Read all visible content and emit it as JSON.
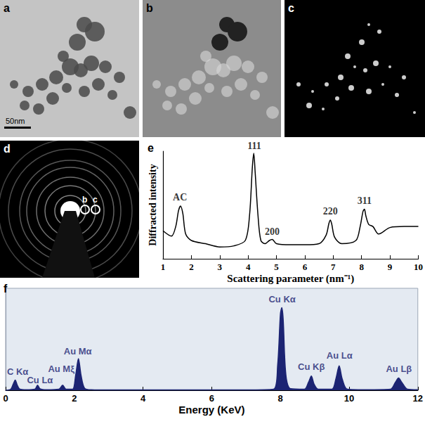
{
  "images": [
    {
      "label": "a",
      "scale_bar": "50nm"
    },
    {
      "label": "b"
    },
    {
      "label": "c"
    },
    {
      "label": "d",
      "aperture_labels": [
        "b",
        "c"
      ]
    }
  ],
  "chart_data": [
    {
      "panel": "e",
      "type": "line",
      "x_label": "Scattering parameter (nm⁻¹)",
      "y_label": "Diffracted intensity",
      "x": [
        1,
        1.3,
        1.45,
        1.55,
        1.62,
        1.7,
        1.8,
        2,
        2.5,
        3,
        3.5,
        3.9,
        4.05,
        4.15,
        4.2,
        4.25,
        4.35,
        4.45,
        4.6,
        4.75,
        4.85,
        5,
        5.5,
        6,
        6.5,
        6.75,
        6.85,
        6.9,
        6.95,
        7.05,
        7.3,
        7.8,
        7.95,
        8.05,
        8.1,
        8.15,
        8.25,
        8.4,
        8.6,
        9,
        9.5,
        10
      ],
      "values": [
        26,
        21,
        30,
        45,
        49,
        42,
        23,
        17,
        14,
        11,
        12,
        17,
        40,
        85,
        98,
        80,
        40,
        17,
        14,
        17,
        18,
        14,
        13,
        13,
        14,
        22,
        33,
        36,
        32,
        20,
        14,
        17,
        30,
        44,
        46,
        40,
        32,
        30,
        23,
        29,
        30,
        30
      ],
      "color": "#000000",
      "xlim": [
        1,
        10
      ],
      "xticks": [
        1,
        2,
        3,
        4,
        5,
        6,
        7,
        8,
        9,
        10
      ],
      "ylim": [
        0,
        100
      ],
      "tick_labels": "x",
      "grid": false,
      "annotations": [
        {
          "text": "AC",
          "x": 1.6,
          "y": 57
        },
        {
          "text": "111",
          "x": 4.22,
          "y": 105
        },
        {
          "text": "200",
          "x": 4.85,
          "y": 25
        },
        {
          "text": "220",
          "x": 6.9,
          "y": 44
        },
        {
          "text": "311",
          "x": 8.1,
          "y": 54
        }
      ]
    },
    {
      "panel": "f",
      "type": "area",
      "x_label": "Energy (KeV)",
      "x": [
        0,
        0.15,
        0.22,
        0.28,
        0.34,
        0.42,
        0.6,
        0.85,
        0.93,
        1.0,
        1.2,
        1.55,
        1.66,
        1.76,
        1.95,
        2.04,
        2.12,
        2.2,
        2.3,
        2.5,
        3,
        4,
        5,
        6,
        7,
        7.8,
        7.92,
        8.0,
        8.04,
        8.08,
        8.16,
        8.3,
        8.7,
        8.82,
        8.9,
        8.98,
        9.1,
        9.5,
        9.62,
        9.71,
        9.8,
        9.95,
        10.5,
        11.2,
        11.35,
        11.44,
        11.53,
        11.7,
        12
      ],
      "values": [
        0,
        1,
        6,
        10,
        5,
        1,
        0.5,
        1,
        5,
        1.5,
        0.5,
        1,
        5,
        1,
        1,
        15,
        31,
        14,
        2,
        0.5,
        0.3,
        0.3,
        0.3,
        0.3,
        0.3,
        1,
        25,
        75,
        81,
        70,
        15,
        1.5,
        1,
        8,
        14,
        6,
        1,
        1,
        12,
        24,
        11,
        1,
        0.5,
        1,
        8,
        12,
        8,
        1,
        0.5
      ],
      "color": "#1c2473",
      "xlim": [
        0,
        12
      ],
      "xticks": [
        0,
        2,
        4,
        6,
        8,
        10,
        12
      ],
      "ylim": [
        0,
        100
      ],
      "tick_labels": "x",
      "grid": false,
      "annotations": [
        {
          "text": "C Kα",
          "x": 0.35,
          "y": 18
        },
        {
          "text": "Cu Lα",
          "x": 1.0,
          "y": 10
        },
        {
          "text": "Au Mξ",
          "x": 1.62,
          "y": 21
        },
        {
          "text": "Au Mα",
          "x": 2.1,
          "y": 38
        },
        {
          "text": "Cu Kα",
          "x": 8.05,
          "y": 89
        },
        {
          "text": "Cu Kβ",
          "x": 8.9,
          "y": 23
        },
        {
          "text": "Au Lα",
          "x": 9.72,
          "y": 34
        },
        {
          "text": "Au Lβ",
          "x": 11.45,
          "y": 21
        }
      ]
    }
  ]
}
